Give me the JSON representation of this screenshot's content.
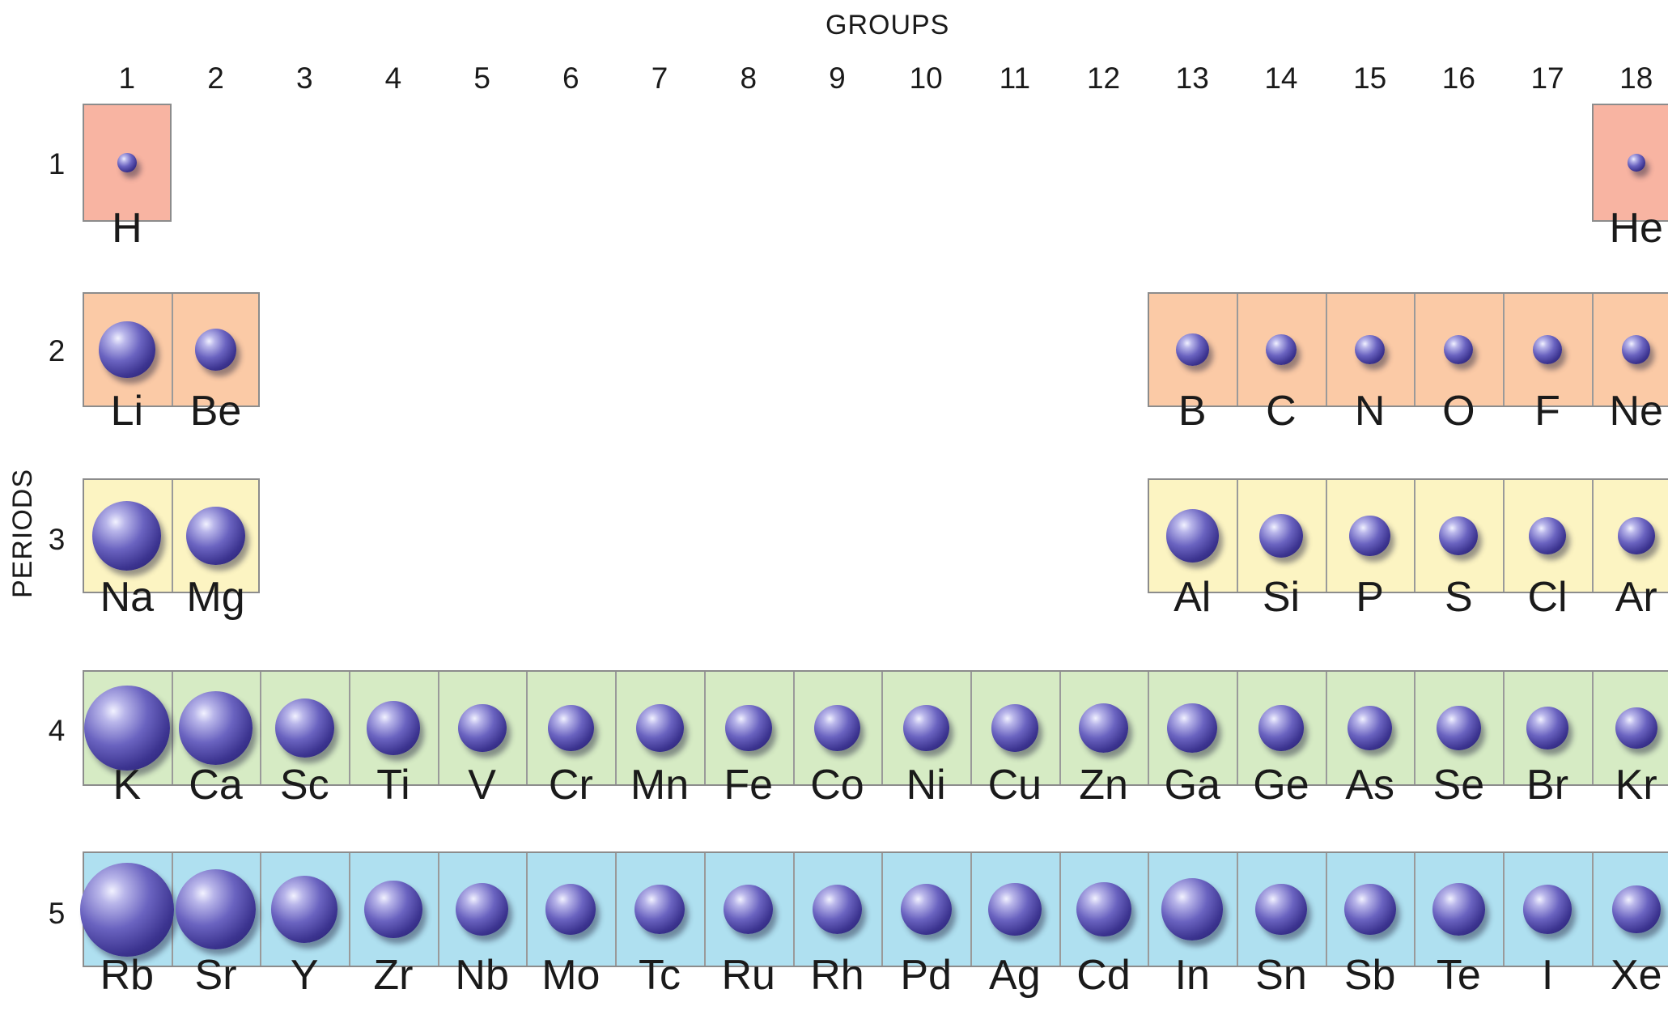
{
  "groups_title": "GROUPS",
  "periods_title": "PERIODS",
  "group_numbers": [
    "1",
    "2",
    "3",
    "4",
    "5",
    "6",
    "7",
    "8",
    "9",
    "10",
    "11",
    "12",
    "13",
    "14",
    "15",
    "16",
    "17",
    "18"
  ],
  "period_numbers": [
    "1",
    "2",
    "3",
    "4",
    "5"
  ],
  "period_colors": [
    "#f8b4a2",
    "#fbcaa6",
    "#fcf4c2",
    "#d6ebc4",
    "#afe0f0"
  ],
  "atom_color": "#4a43a8",
  "elements": [
    {
      "symbol": "H",
      "period": 1,
      "group": 1,
      "radius": 37
    },
    {
      "symbol": "He",
      "period": 1,
      "group": 18,
      "radius": 31
    },
    {
      "symbol": "Li",
      "period": 2,
      "group": 1,
      "radius": 152
    },
    {
      "symbol": "Be",
      "period": 2,
      "group": 2,
      "radius": 112
    },
    {
      "symbol": "B",
      "period": 2,
      "group": 13,
      "radius": 85
    },
    {
      "symbol": "C",
      "period": 2,
      "group": 14,
      "radius": 77
    },
    {
      "symbol": "N",
      "period": 2,
      "group": 15,
      "radius": 75
    },
    {
      "symbol": "O",
      "period": 2,
      "group": 16,
      "radius": 73
    },
    {
      "symbol": "F",
      "period": 2,
      "group": 17,
      "radius": 72
    },
    {
      "symbol": "Ne",
      "period": 2,
      "group": 18,
      "radius": 71
    },
    {
      "symbol": "Na",
      "period": 3,
      "group": 1,
      "radius": 186
    },
    {
      "symbol": "Mg",
      "period": 3,
      "group": 2,
      "radius": 160
    },
    {
      "symbol": "Al",
      "period": 3,
      "group": 13,
      "radius": 143
    },
    {
      "symbol": "Si",
      "period": 3,
      "group": 14,
      "radius": 118
    },
    {
      "symbol": "P",
      "period": 3,
      "group": 15,
      "radius": 110
    },
    {
      "symbol": "S",
      "period": 3,
      "group": 16,
      "radius": 103
    },
    {
      "symbol": "Cl",
      "period": 3,
      "group": 17,
      "radius": 100
    },
    {
      "symbol": "Ar",
      "period": 3,
      "group": 18,
      "radius": 98
    },
    {
      "symbol": "K",
      "period": 4,
      "group": 1,
      "radius": 227
    },
    {
      "symbol": "Ca",
      "period": 4,
      "group": 2,
      "radius": 197
    },
    {
      "symbol": "Sc",
      "period": 4,
      "group": 3,
      "radius": 160
    },
    {
      "symbol": "Ti",
      "period": 4,
      "group": 4,
      "radius": 146
    },
    {
      "symbol": "V",
      "period": 4,
      "group": 5,
      "radius": 131
    },
    {
      "symbol": "Cr",
      "period": 4,
      "group": 6,
      "radius": 125
    },
    {
      "symbol": "Mn",
      "period": 4,
      "group": 7,
      "radius": 129
    },
    {
      "symbol": "Fe",
      "period": 4,
      "group": 8,
      "radius": 126
    },
    {
      "symbol": "Co",
      "period": 4,
      "group": 9,
      "radius": 125
    },
    {
      "symbol": "Ni",
      "period": 4,
      "group": 10,
      "radius": 124
    },
    {
      "symbol": "Cu",
      "period": 4,
      "group": 11,
      "radius": 128
    },
    {
      "symbol": "Zn",
      "period": 4,
      "group": 12,
      "radius": 133
    },
    {
      "symbol": "Ga",
      "period": 4,
      "group": 13,
      "radius": 135
    },
    {
      "symbol": "Ge",
      "period": 4,
      "group": 14,
      "radius": 122
    },
    {
      "symbol": "As",
      "period": 4,
      "group": 15,
      "radius": 120
    },
    {
      "symbol": "Se",
      "period": 4,
      "group": 16,
      "radius": 119
    },
    {
      "symbol": "Br",
      "period": 4,
      "group": 17,
      "radius": 114
    },
    {
      "symbol": "Kr",
      "period": 4,
      "group": 18,
      "radius": 112
    },
    {
      "symbol": "Rb",
      "period": 5,
      "group": 1,
      "radius": 248
    },
    {
      "symbol": "Sr",
      "period": 5,
      "group": 2,
      "radius": 215
    },
    {
      "symbol": "Y",
      "period": 5,
      "group": 3,
      "radius": 180
    },
    {
      "symbol": "Zr",
      "period": 5,
      "group": 4,
      "radius": 157
    },
    {
      "symbol": "Nb",
      "period": 5,
      "group": 5,
      "radius": 143
    },
    {
      "symbol": "Mo",
      "period": 5,
      "group": 6,
      "radius": 136
    },
    {
      "symbol": "Tc",
      "period": 5,
      "group": 7,
      "radius": 135
    },
    {
      "symbol": "Ru",
      "period": 5,
      "group": 8,
      "radius": 134
    },
    {
      "symbol": "Rh",
      "period": 5,
      "group": 9,
      "radius": 134
    },
    {
      "symbol": "Pd",
      "period": 5,
      "group": 10,
      "radius": 138
    },
    {
      "symbol": "Ag",
      "period": 5,
      "group": 11,
      "radius": 144
    },
    {
      "symbol": "Cd",
      "period": 5,
      "group": 12,
      "radius": 149
    },
    {
      "symbol": "In",
      "period": 5,
      "group": 13,
      "radius": 167
    },
    {
      "symbol": "Sn",
      "period": 5,
      "group": 14,
      "radius": 140
    },
    {
      "symbol": "Sb",
      "period": 5,
      "group": 15,
      "radius": 140
    },
    {
      "symbol": "Te",
      "period": 5,
      "group": 16,
      "radius": 142
    },
    {
      "symbol": "I",
      "period": 5,
      "group": 17,
      "radius": 133
    },
    {
      "symbol": "Xe",
      "period": 5,
      "group": 18,
      "radius": 131
    }
  ]
}
